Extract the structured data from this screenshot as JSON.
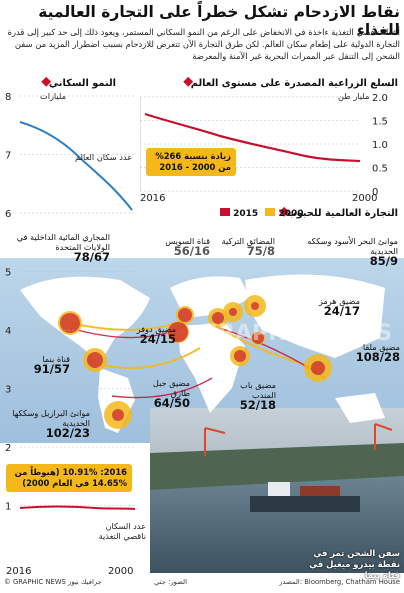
{
  "title": "نقاط الازدحام تشكل خطراً على التجارة العالمية للغذاء",
  "intro": "أعداد ناقصي التغذية ءاخذة في الانخفاض على الرغم من النمو السكاني المستمر، ويعود ذلك إلى حد كبير إلى قدرة التجارة الدولية على إطعام سكان العالم. لكن طرق التجارة الآن تتعرض للازدحام بسبب اضطرار المزيد من سفن الشحن إلى التنقل عبر الممرات البحرية غير الآمنة والمعرضة",
  "population": {
    "heading": "النمو السكاني",
    "unit": "مليارات",
    "y_ticks": [
      "8",
      "7",
      "6",
      "5",
      "4",
      "3",
      "2",
      "1"
    ],
    "x_start": "2016",
    "x_end": "2000",
    "world_pop_label": "عدد سكان العالم",
    "undernourished_label": "عدد السكان ناقصي التغذية",
    "callout_line1": "2016: 10.91% (هبوطاً من",
    "callout_line2": "14.65% في العام 2000)"
  },
  "agri": {
    "heading": "السلع الزراعية المصدرة على مستوى العالم",
    "unit": "مليار طن",
    "y_ticks": [
      "2.0",
      "1.5",
      "1.0",
      "0.5",
      "0"
    ],
    "x_start": "2016",
    "x_end": "2000",
    "callout_line1": "زيادة بنسبة 266%",
    "callout_line2": "من 2000 - 2016"
  },
  "grain": {
    "heading": "التجارة العالمية للحبوب",
    "legend_2000": "2000",
    "legend_2015": "2015",
    "color_2000": "#f5b81b",
    "color_2015": "#c8102e"
  },
  "chokepoints": [
    {
      "name": "المجاري المائية الداخلية في الولايات المتحدة",
      "value": "78/67"
    },
    {
      "name": "قناة بنما",
      "value": "91/57"
    },
    {
      "name": "موانئ البرازيل وسككها الحديدية",
      "value": "102/23"
    },
    {
      "name": "قناة السويس",
      "value": "56/16"
    },
    {
      "name": "المضائق التركية",
      "value": "75/8"
    },
    {
      "name": "موانئ البحر الأسود وسككه الحديدية",
      "value": "85/9"
    },
    {
      "name": "مضيق دوفر",
      "value": "24/15"
    },
    {
      "name": "مضيق هرمز",
      "value": "24/17"
    },
    {
      "name": "مضيق جبل طارق",
      "value": "64/50"
    },
    {
      "name": "مضيق باب المندب",
      "value": "52/18"
    },
    {
      "name": "مضيق ملقا",
      "value": "108/28"
    }
  ],
  "photo_caption": "سفن الشحن تمر في نقطة بيدرو ميغيل في قناة بنما",
  "watermark": "GRAPHIC NEWS",
  "footer": {
    "source": "المصدر: Bloomberg, Chatham House",
    "photo": "الصور: جتي",
    "brand": "© GRAPHIC NEWS جرافيك نيوز"
  }
}
